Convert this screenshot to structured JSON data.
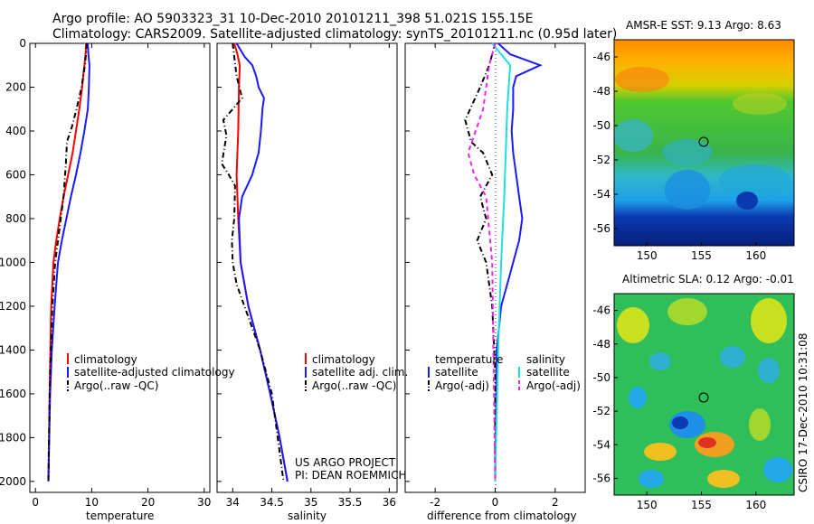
{
  "header": {
    "title_line1": "Argo profile: AO 5903323_31 10-Dec-2010 20101211_398 51.021S 155.15E",
    "title_line2": "Climatology: CARS2009. Satellite-adjusted climatology: synTS_20101211.nc (0.95d later)"
  },
  "colors": {
    "climatology": "#ff0000",
    "satellite": "#1a1aff",
    "argo": "#000000",
    "sal_satellite": "#22dddd",
    "sal_argo": "#ee22ee"
  },
  "chart_data": [
    {
      "type": "line",
      "panel": "temperature",
      "xlabel": "temperature",
      "xlim": [
        -1,
        31
      ],
      "ylim": [
        0,
        2050
      ],
      "y_reversed": true,
      "x_ticks": [
        "0",
        "10",
        "20",
        "30"
      ],
      "y_ticks": [
        "0",
        "200",
        "400",
        "600",
        "800",
        "1000",
        "1200",
        "1400",
        "1600",
        "1800",
        "2000"
      ],
      "legend": [
        "climatology",
        "satellite-adjusted climatology",
        "Argo(..raw -QC)"
      ],
      "series": [
        {
          "name": "climatology",
          "color": "#ff0000",
          "style": "solid",
          "x": [
            9.0,
            8.9,
            8.7,
            8.3,
            7.8,
            7.2,
            6.6,
            5.8,
            5.0,
            4.3,
            3.7,
            3.2,
            2.8,
            2.5,
            2.3
          ],
          "y": [
            0,
            50,
            100,
            200,
            300,
            400,
            500,
            600,
            700,
            800,
            900,
            1000,
            1200,
            1600,
            2000
          ]
        },
        {
          "name": "satellite-adjusted climatology",
          "color": "#1a1aff",
          "style": "solid",
          "x": [
            9.3,
            9.4,
            9.6,
            9.5,
            9.3,
            8.7,
            8.0,
            7.2,
            6.3,
            5.5,
            4.7,
            4.0,
            3.4,
            2.9,
            2.6,
            2.3
          ],
          "y": [
            0,
            50,
            100,
            200,
            300,
            400,
            500,
            600,
            700,
            800,
            900,
            1000,
            1200,
            1400,
            1600,
            2000
          ]
        },
        {
          "name": "Argo(..raw -QC)",
          "color": "#000000",
          "style": "dashdot",
          "x": [
            9.1,
            9.0,
            8.8,
            8.2,
            7.3,
            6.5,
            5.6,
            5.4,
            5.0,
            4.5,
            4.0,
            3.5,
            3.0,
            2.6,
            2.3
          ],
          "y": [
            0,
            40,
            100,
            200,
            300,
            380,
            450,
            550,
            700,
            800,
            900,
            1000,
            1200,
            1500,
            2000
          ]
        }
      ]
    },
    {
      "type": "line",
      "panel": "salinity",
      "xlabel": "salinity",
      "xlim": [
        33.8,
        36.1
      ],
      "ylim": [
        0,
        2050
      ],
      "y_reversed": true,
      "x_ticks": [
        "34",
        "34.5",
        "35",
        "35.5",
        "36"
      ],
      "legend": [
        "climatology",
        "satellite adj. clim.",
        "Argo(..raw -QC)"
      ],
      "annotation_line1": "US ARGO PROJECT",
      "annotation_line2": "PI: DEAN ROEMMICH",
      "series": [
        {
          "name": "climatology",
          "color": "#ff0000",
          "style": "solid",
          "x": [
            34.02,
            34.06,
            34.09,
            34.08,
            34.07,
            34.06,
            34.05,
            34.07,
            34.1,
            34.2,
            34.35,
            34.48,
            34.6,
            34.7
          ],
          "y": [
            0,
            50,
            100,
            200,
            400,
            500,
            600,
            800,
            1000,
            1200,
            1400,
            1600,
            1800,
            2000
          ]
        },
        {
          "name": "satellite adj. clim.",
          "color": "#1a1aff",
          "style": "solid",
          "x": [
            34.05,
            34.15,
            34.25,
            34.3,
            34.33,
            34.4,
            34.38,
            34.36,
            34.33,
            34.25,
            34.12,
            34.08,
            34.1,
            34.2,
            34.35,
            34.48,
            34.6,
            34.7
          ],
          "y": [
            0,
            60,
            100,
            150,
            200,
            250,
            300,
            400,
            500,
            600,
            700,
            800,
            1000,
            1200,
            1400,
            1600,
            1800,
            2000
          ]
        },
        {
          "name": "Argo(..raw -QC)",
          "color": "#000000",
          "style": "dashdot",
          "x": [
            34.0,
            34.02,
            34.05,
            34.12,
            33.88,
            33.92,
            33.86,
            33.95,
            34.03,
            34.02,
            33.99,
            34.0,
            34.05,
            34.15,
            34.35,
            34.5,
            34.65
          ],
          "y": [
            0,
            60,
            150,
            250,
            350,
            420,
            550,
            600,
            650,
            800,
            900,
            1000,
            1100,
            1200,
            1400,
            1600,
            2000
          ]
        }
      ]
    },
    {
      "type": "line",
      "panel": "difference",
      "xlabel": "difference from climatology",
      "xlim": [
        -3.0,
        3.0
      ],
      "ylim": [
        0,
        2050
      ],
      "y_reversed": true,
      "x_ticks": [
        "-2",
        "0",
        "2"
      ],
      "legend_group1_title": "temperature",
      "legend_group2_title": "salinity",
      "legend": [
        "satellite",
        "Argo(-adj)",
        "satellite",
        "Argo(-adj)"
      ],
      "series": [
        {
          "name": "temperature satellite",
          "color": "#1a1aff",
          "style": "solid",
          "x": [
            0.1,
            0.5,
            1.5,
            0.7,
            0.6,
            0.6,
            0.55,
            0.6,
            0.7,
            0.8,
            0.9,
            0.8,
            0.6,
            0.4,
            0.2,
            0.05,
            0.0
          ],
          "y": [
            0,
            50,
            100,
            150,
            200,
            300,
            400,
            500,
            600,
            700,
            800,
            900,
            1000,
            1100,
            1200,
            1400,
            2000
          ]
        },
        {
          "name": "temperature Argo(-adj)",
          "color": "#000000",
          "style": "dashdot",
          "x": [
            0.0,
            -0.2,
            -0.5,
            -1.0,
            -0.8,
            -0.4,
            -0.1,
            -0.5,
            -0.3,
            -0.6,
            -0.3,
            -0.1,
            0.0,
            0.0
          ],
          "y": [
            0,
            100,
            200,
            350,
            450,
            500,
            600,
            700,
            800,
            900,
            1000,
            1200,
            1500,
            2000
          ]
        },
        {
          "name": "salinity satellite",
          "color": "#22dddd",
          "style": "solid",
          "x": [
            -0.1,
            0.5,
            0.4,
            0.3,
            0.2,
            0.1,
            0.0
          ],
          "y": [
            0,
            100,
            300,
            700,
            1000,
            1400,
            2000
          ]
        },
        {
          "name": "salinity Argo(-adj)",
          "color": "#ee22ee",
          "style": "dashed",
          "x": [
            0.0,
            -0.2,
            -0.4,
            -0.9,
            -0.7,
            -0.3,
            -0.1,
            0.0
          ],
          "y": [
            0,
            100,
            300,
            500,
            600,
            700,
            1000,
            2000
          ]
        }
      ]
    },
    {
      "type": "heatmap",
      "panel": "sst_map",
      "title": "AMSR-E SST: 9.13 Argo: 8.63",
      "xlim": [
        147,
        163.5
      ],
      "ylim": [
        -57,
        -45
      ],
      "x_ticks": [
        "150",
        "155",
        "160"
      ],
      "y_ticks": [
        "-46",
        "-48",
        "-50",
        "-52",
        "-54",
        "-56"
      ],
      "profile_location": {
        "lon": 155.15,
        "lat": -51.021
      }
    },
    {
      "type": "heatmap",
      "panel": "sla_map",
      "title": "Altimetric SLA: 0.12 Argo: -0.01",
      "xlim": [
        147,
        163.5
      ],
      "ylim": [
        -57,
        -45
      ],
      "x_ticks": [
        "150",
        "155",
        "160"
      ],
      "y_ticks": [
        "-46",
        "-48",
        "-50",
        "-52",
        "-54",
        "-56"
      ],
      "profile_location": {
        "lon": 155.15,
        "lat": -51.021
      }
    }
  ],
  "side_stamp": "CSIRO 17-Dec-2010 10:31:08"
}
